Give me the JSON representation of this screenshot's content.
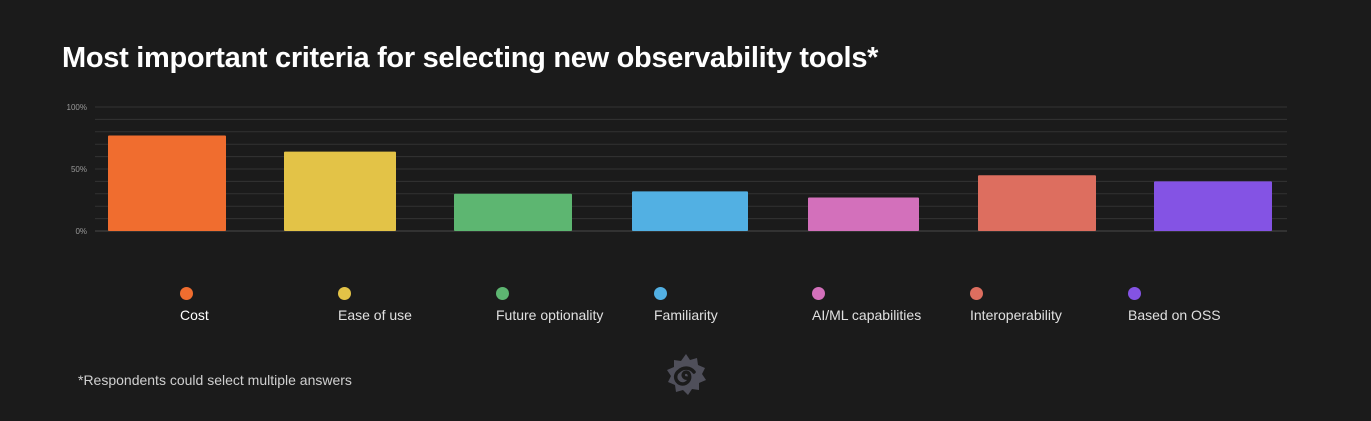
{
  "chart_data": {
    "type": "bar",
    "title": "Most important criteria for selecting new observability tools*",
    "categories": [
      "Cost",
      "Ease of use",
      "Future optionality",
      "Familiarity",
      "AI/ML capabilities",
      "Interoperability",
      "Based on OSS"
    ],
    "values": [
      77,
      64,
      30,
      32,
      27,
      45,
      40
    ],
    "colors": [
      "#f06d2f",
      "#e3c347",
      "#5db671",
      "#52b0e3",
      "#d370bb",
      "#dd6e5f",
      "#8453e4"
    ],
    "ylim": [
      0,
      100
    ],
    "yticks": [
      {
        "value": 0,
        "label": "0%"
      },
      {
        "value": 50,
        "label": "50%"
      },
      {
        "value": 100,
        "label": "100%"
      }
    ],
    "grid": true,
    "legend": "bottom",
    "footnote": "*Respondents could select multiple answers"
  },
  "logo": "grafana-logo"
}
